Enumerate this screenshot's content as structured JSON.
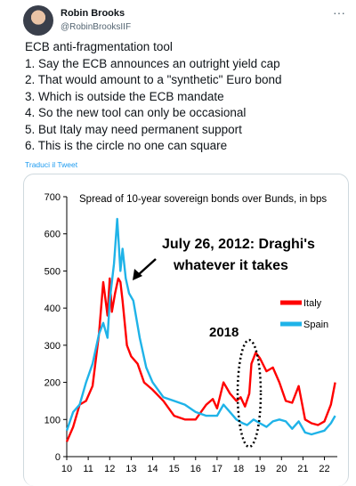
{
  "author": {
    "name": "Robin Brooks",
    "handle": "@RobinBrooksIIF"
  },
  "more_icon": "more-icon",
  "tweet_lines": [
    "ECB anti-fragmentation tool",
    "1. Say the ECB announces an outright yield cap",
    "2. That would amount to a \"synthetic\" Euro bond",
    "3. Which is outside the ECB mandate",
    "4. So the new tool can only be occasional",
    "5. But Italy may need permanent support",
    "6. This is the circle no one can square"
  ],
  "translate_label": "Traduci il Tweet",
  "colors": {
    "italy": "#ff0000",
    "spain": "#1fb3e8",
    "link": "#1d9bf0"
  },
  "chart_data": {
    "type": "line",
    "title": "Spread of 10-year sovereign bonds over Bunds, in bps",
    "ylim": [
      0,
      700
    ],
    "yticks": [
      "0",
      "100",
      "200",
      "300",
      "400",
      "500",
      "600",
      "700"
    ],
    "xlim": [
      10,
      22.6
    ],
    "xticks": [
      "10",
      "11",
      "12",
      "13",
      "14",
      "15",
      "16",
      "17",
      "18",
      "19",
      "20",
      "21",
      "22"
    ],
    "annotations": {
      "draghi_line1": "July 26, 2012: Draghi's",
      "draghi_line2": "whatever it takes",
      "year_2018": "2018"
    },
    "legend_position": "right",
    "series": [
      {
        "name": "Italy",
        "color": "#ff0000",
        "x": [
          10.0,
          10.3,
          10.6,
          10.9,
          11.2,
          11.5,
          11.7,
          11.9,
          12.0,
          12.1,
          12.25,
          12.4,
          12.5,
          12.6,
          12.8,
          13.0,
          13.3,
          13.6,
          14.0,
          14.5,
          15.0,
          15.5,
          16.0,
          16.5,
          16.8,
          17.0,
          17.3,
          17.6,
          17.9,
          18.1,
          18.3,
          18.5,
          18.6,
          18.8,
          19.0,
          19.3,
          19.6,
          19.9,
          20.2,
          20.5,
          20.8,
          21.1,
          21.4,
          21.7,
          22.0,
          22.3,
          22.5
        ],
        "y": [
          40,
          80,
          140,
          150,
          190,
          330,
          470,
          380,
          480,
          390,
          440,
          480,
          470,
          420,
          300,
          270,
          250,
          200,
          180,
          150,
          110,
          100,
          100,
          140,
          155,
          130,
          200,
          170,
          150,
          160,
          135,
          170,
          250,
          280,
          265,
          230,
          240,
          200,
          150,
          145,
          190,
          100,
          90,
          85,
          95,
          140,
          200
        ]
      },
      {
        "name": "Spain",
        "color": "#1fb3e8",
        "x": [
          10.0,
          10.3,
          10.6,
          10.9,
          11.2,
          11.5,
          11.7,
          11.9,
          12.0,
          12.2,
          12.35,
          12.5,
          12.6,
          12.75,
          12.9,
          13.1,
          13.4,
          13.7,
          14.0,
          14.5,
          15.0,
          15.5,
          16.0,
          16.5,
          17.0,
          17.3,
          17.6,
          17.9,
          18.2,
          18.4,
          18.7,
          19.0,
          19.3,
          19.6,
          19.9,
          20.2,
          20.5,
          20.8,
          21.1,
          21.4,
          21.7,
          22.0,
          22.3,
          22.5
        ],
        "y": [
          70,
          120,
          140,
          200,
          250,
          330,
          360,
          320,
          420,
          520,
          640,
          500,
          560,
          480,
          440,
          420,
          320,
          240,
          200,
          160,
          150,
          140,
          120,
          110,
          110,
          140,
          120,
          100,
          90,
          85,
          100,
          90,
          80,
          95,
          100,
          95,
          75,
          95,
          65,
          60,
          65,
          70,
          90,
          110
        ]
      }
    ]
  }
}
